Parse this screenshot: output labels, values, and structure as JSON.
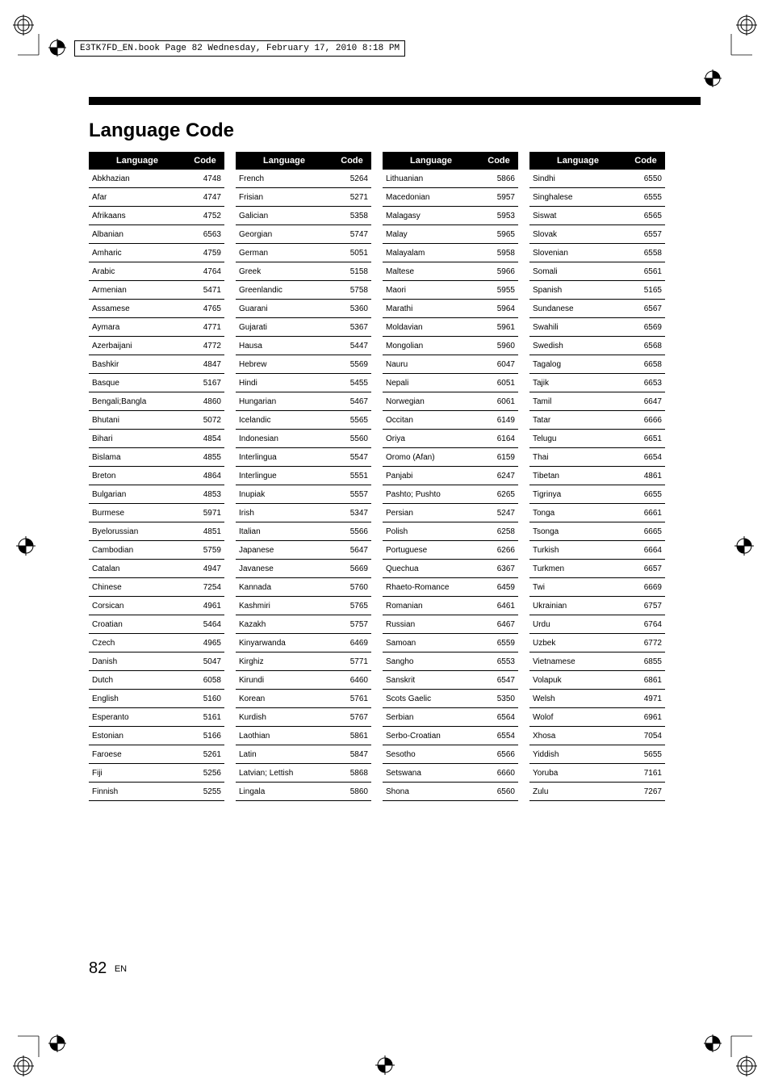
{
  "header_line": "E3TK7FD_EN.book  Page 82  Wednesday, February 17, 2010  8:18 PM",
  "section_title": "Language Code",
  "page_number": "82",
  "page_suffix": "EN",
  "table_header": {
    "language": "Language",
    "code": "Code"
  },
  "columns": [
    [
      {
        "l": "Abkhazian",
        "c": "4748"
      },
      {
        "l": "Afar",
        "c": "4747"
      },
      {
        "l": "Afrikaans",
        "c": "4752"
      },
      {
        "l": "Albanian",
        "c": "6563"
      },
      {
        "l": "Amharic",
        "c": "4759"
      },
      {
        "l": "Arabic",
        "c": "4764"
      },
      {
        "l": "Armenian",
        "c": "5471"
      },
      {
        "l": "Assamese",
        "c": "4765"
      },
      {
        "l": "Aymara",
        "c": "4771"
      },
      {
        "l": "Azerbaijani",
        "c": "4772"
      },
      {
        "l": "Bashkir",
        "c": "4847"
      },
      {
        "l": "Basque",
        "c": "5167"
      },
      {
        "l": "Bengali;Bangla",
        "c": "4860"
      },
      {
        "l": "Bhutani",
        "c": "5072"
      },
      {
        "l": "Bihari",
        "c": "4854"
      },
      {
        "l": "Bislama",
        "c": "4855"
      },
      {
        "l": "Breton",
        "c": "4864"
      },
      {
        "l": "Bulgarian",
        "c": "4853"
      },
      {
        "l": "Burmese",
        "c": "5971"
      },
      {
        "l": "Byelorussian",
        "c": "4851"
      },
      {
        "l": "Cambodian",
        "c": "5759"
      },
      {
        "l": "Catalan",
        "c": "4947"
      },
      {
        "l": "Chinese",
        "c": "7254"
      },
      {
        "l": "Corsican",
        "c": "4961"
      },
      {
        "l": "Croatian",
        "c": "5464"
      },
      {
        "l": "Czech",
        "c": "4965"
      },
      {
        "l": "Danish",
        "c": "5047"
      },
      {
        "l": "Dutch",
        "c": "6058"
      },
      {
        "l": "English",
        "c": "5160"
      },
      {
        "l": "Esperanto",
        "c": "5161"
      },
      {
        "l": "Estonian",
        "c": "5166"
      },
      {
        "l": "Faroese",
        "c": "5261"
      },
      {
        "l": "Fiji",
        "c": "5256"
      },
      {
        "l": "Finnish",
        "c": "5255"
      }
    ],
    [
      {
        "l": "French",
        "c": "5264"
      },
      {
        "l": "Frisian",
        "c": "5271"
      },
      {
        "l": "Galician",
        "c": "5358"
      },
      {
        "l": "Georgian",
        "c": "5747"
      },
      {
        "l": "German",
        "c": "5051"
      },
      {
        "l": "Greek",
        "c": "5158"
      },
      {
        "l": "Greenlandic",
        "c": "5758"
      },
      {
        "l": "Guarani",
        "c": "5360"
      },
      {
        "l": "Gujarati",
        "c": "5367"
      },
      {
        "l": "Hausa",
        "c": "5447"
      },
      {
        "l": "Hebrew",
        "c": "5569"
      },
      {
        "l": "Hindi",
        "c": "5455"
      },
      {
        "l": "Hungarian",
        "c": "5467"
      },
      {
        "l": "Icelandic",
        "c": "5565"
      },
      {
        "l": "Indonesian",
        "c": "5560"
      },
      {
        "l": "Interlingua",
        "c": "5547"
      },
      {
        "l": "Interlingue",
        "c": "5551"
      },
      {
        "l": "Inupiak",
        "c": "5557"
      },
      {
        "l": "Irish",
        "c": "5347"
      },
      {
        "l": "Italian",
        "c": "5566"
      },
      {
        "l": "Japanese",
        "c": "5647"
      },
      {
        "l": "Javanese",
        "c": "5669"
      },
      {
        "l": "Kannada",
        "c": "5760"
      },
      {
        "l": "Kashmiri",
        "c": "5765"
      },
      {
        "l": "Kazakh",
        "c": "5757"
      },
      {
        "l": "Kinyarwanda",
        "c": "6469"
      },
      {
        "l": "Kirghiz",
        "c": "5771"
      },
      {
        "l": "Kirundi",
        "c": "6460"
      },
      {
        "l": "Korean",
        "c": "5761"
      },
      {
        "l": "Kurdish",
        "c": "5767"
      },
      {
        "l": "Laothian",
        "c": "5861"
      },
      {
        "l": "Latin",
        "c": "5847"
      },
      {
        "l": "Latvian; Lettish",
        "c": "5868"
      },
      {
        "l": "Lingala",
        "c": "5860"
      }
    ],
    [
      {
        "l": "Lithuanian",
        "c": "5866"
      },
      {
        "l": "Macedonian",
        "c": "5957"
      },
      {
        "l": "Malagasy",
        "c": "5953"
      },
      {
        "l": "Malay",
        "c": "5965"
      },
      {
        "l": "Malayalam",
        "c": "5958"
      },
      {
        "l": "Maltese",
        "c": "5966"
      },
      {
        "l": "Maori",
        "c": "5955"
      },
      {
        "l": "Marathi",
        "c": "5964"
      },
      {
        "l": "Moldavian",
        "c": "5961"
      },
      {
        "l": "Mongolian",
        "c": "5960"
      },
      {
        "l": "Nauru",
        "c": "6047"
      },
      {
        "l": "Nepali",
        "c": "6051"
      },
      {
        "l": "Norwegian",
        "c": "6061"
      },
      {
        "l": "Occitan",
        "c": "6149"
      },
      {
        "l": "Oriya",
        "c": "6164"
      },
      {
        "l": "Oromo (Afan)",
        "c": "6159"
      },
      {
        "l": "Panjabi",
        "c": "6247"
      },
      {
        "l": "Pashto; Pushto",
        "c": "6265"
      },
      {
        "l": "Persian",
        "c": "5247"
      },
      {
        "l": "Polish",
        "c": "6258"
      },
      {
        "l": "Portuguese",
        "c": "6266"
      },
      {
        "l": "Quechua",
        "c": "6367"
      },
      {
        "l": "Rhaeto-Romance",
        "c": "6459"
      },
      {
        "l": "Romanian",
        "c": "6461"
      },
      {
        "l": "Russian",
        "c": "6467"
      },
      {
        "l": "Samoan",
        "c": "6559"
      },
      {
        "l": "Sangho",
        "c": "6553"
      },
      {
        "l": "Sanskrit",
        "c": "6547"
      },
      {
        "l": "Scots Gaelic",
        "c": "5350"
      },
      {
        "l": "Serbian",
        "c": "6564"
      },
      {
        "l": "Serbo-Croatian",
        "c": "6554"
      },
      {
        "l": "Sesotho",
        "c": "6566"
      },
      {
        "l": "Setswana",
        "c": "6660"
      },
      {
        "l": "Shona",
        "c": "6560"
      }
    ],
    [
      {
        "l": "Sindhi",
        "c": "6550"
      },
      {
        "l": "Singhalese",
        "c": "6555"
      },
      {
        "l": "Siswat",
        "c": "6565"
      },
      {
        "l": "Slovak",
        "c": "6557"
      },
      {
        "l": "Slovenian",
        "c": "6558"
      },
      {
        "l": "Somali",
        "c": "6561"
      },
      {
        "l": "Spanish",
        "c": "5165"
      },
      {
        "l": "Sundanese",
        "c": "6567"
      },
      {
        "l": "Swahili",
        "c": "6569"
      },
      {
        "l": "Swedish",
        "c": "6568"
      },
      {
        "l": "Tagalog",
        "c": "6658"
      },
      {
        "l": "Tajik",
        "c": "6653"
      },
      {
        "l": "Tamil",
        "c": "6647"
      },
      {
        "l": "Tatar",
        "c": "6666"
      },
      {
        "l": "Telugu",
        "c": "6651"
      },
      {
        "l": "Thai",
        "c": "6654"
      },
      {
        "l": "Tibetan",
        "c": "4861"
      },
      {
        "l": "Tigrinya",
        "c": "6655"
      },
      {
        "l": "Tonga",
        "c": "6661"
      },
      {
        "l": "Tsonga",
        "c": "6665"
      },
      {
        "l": "Turkish",
        "c": "6664"
      },
      {
        "l": "Turkmen",
        "c": "6657"
      },
      {
        "l": "Twi",
        "c": "6669"
      },
      {
        "l": "Ukrainian",
        "c": "6757"
      },
      {
        "l": "Urdu",
        "c": "6764"
      },
      {
        "l": "Uzbek",
        "c": "6772"
      },
      {
        "l": "Vietnamese",
        "c": "6855"
      },
      {
        "l": "Volapuk",
        "c": "6861"
      },
      {
        "l": "Welsh",
        "c": "4971"
      },
      {
        "l": "Wolof",
        "c": "6961"
      },
      {
        "l": "Xhosa",
        "c": "7054"
      },
      {
        "l": "Yiddish",
        "c": "5655"
      },
      {
        "l": "Yoruba",
        "c": "7161"
      },
      {
        "l": "Zulu",
        "c": "7267"
      }
    ]
  ]
}
